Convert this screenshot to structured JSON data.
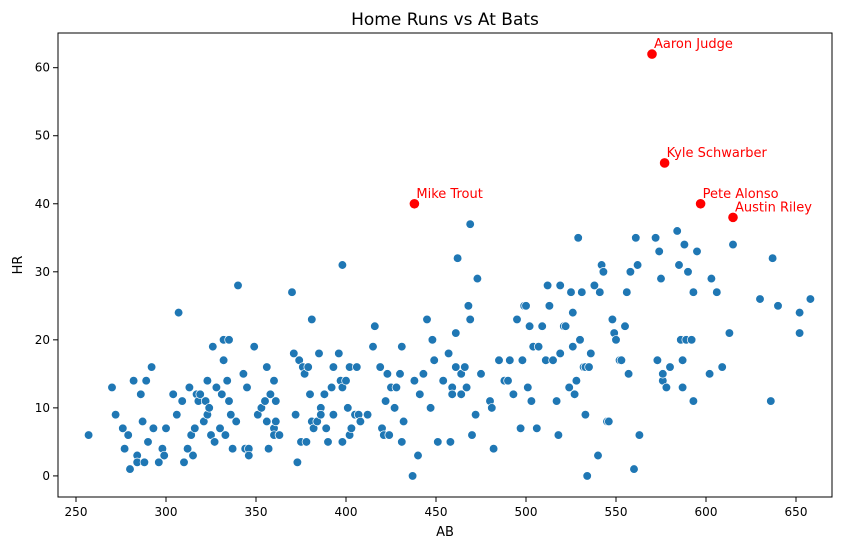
{
  "chart_data": {
    "type": "scatter",
    "title": "Home Runs vs At Bats",
    "xlabel": "AB",
    "ylabel": "HR",
    "xlim": [
      240,
      670
    ],
    "ylim": [
      -3.1,
      65.1
    ],
    "xticks": [
      250,
      300,
      350,
      400,
      450,
      500,
      550,
      600,
      650
    ],
    "yticks": [
      0,
      10,
      20,
      30,
      40,
      50,
      60
    ],
    "grid": false,
    "colors": {
      "points": "#1f77b4",
      "highlight": "#ff0000",
      "point_edge": "#ffffff"
    },
    "highlighted": [
      {
        "label": "Aaron Judge",
        "x": 570,
        "y": 62
      },
      {
        "label": "Kyle Schwarber",
        "x": 577,
        "y": 46
      },
      {
        "label": "Mike Trout",
        "x": 438,
        "y": 40
      },
      {
        "label": "Pete Alonso",
        "x": 597,
        "y": 40
      },
      {
        "label": "Austin Riley",
        "x": 615,
        "y": 38
      }
    ],
    "points": [
      [
        257,
        6
      ],
      [
        270,
        13
      ],
      [
        272,
        9
      ],
      [
        276,
        7
      ],
      [
        277,
        4
      ],
      [
        279,
        6
      ],
      [
        280,
        1
      ],
      [
        282,
        14
      ],
      [
        284,
        3
      ],
      [
        284,
        2
      ],
      [
        286,
        12
      ],
      [
        287,
        8
      ],
      [
        288,
        2
      ],
      [
        289,
        14
      ],
      [
        290,
        5
      ],
      [
        292,
        16
      ],
      [
        293,
        7
      ],
      [
        296,
        2
      ],
      [
        298,
        4
      ],
      [
        299,
        3
      ],
      [
        300,
        7
      ],
      [
        304,
        12
      ],
      [
        306,
        9
      ],
      [
        307,
        24
      ],
      [
        309,
        11
      ],
      [
        310,
        2
      ],
      [
        312,
        4
      ],
      [
        313,
        13
      ],
      [
        314,
        6
      ],
      [
        315,
        3
      ],
      [
        316,
        7
      ],
      [
        317,
        12
      ],
      [
        318,
        11
      ],
      [
        319,
        12
      ],
      [
        321,
        8
      ],
      [
        322,
        11
      ],
      [
        323,
        14
      ],
      [
        323,
        9
      ],
      [
        324,
        10
      ],
      [
        325,
        6
      ],
      [
        326,
        19
      ],
      [
        327,
        5
      ],
      [
        328,
        13
      ],
      [
        330,
        7
      ],
      [
        331,
        12
      ],
      [
        332,
        17
      ],
      [
        332,
        20
      ],
      [
        333,
        6
      ],
      [
        334,
        14
      ],
      [
        335,
        11
      ],
      [
        335,
        20
      ],
      [
        336,
        9
      ],
      [
        337,
        4
      ],
      [
        339,
        8
      ],
      [
        340,
        28
      ],
      [
        343,
        15
      ],
      [
        344,
        4
      ],
      [
        345,
        13
      ],
      [
        346,
        4
      ],
      [
        346,
        3
      ],
      [
        349,
        19
      ],
      [
        351,
        9
      ],
      [
        353,
        10
      ],
      [
        355,
        11
      ],
      [
        356,
        16
      ],
      [
        356,
        8
      ],
      [
        357,
        4
      ],
      [
        358,
        12
      ],
      [
        360,
        14
      ],
      [
        360,
        7
      ],
      [
        360,
        6
      ],
      [
        361,
        11
      ],
      [
        361,
        8
      ],
      [
        363,
        6
      ],
      [
        370,
        27
      ],
      [
        371,
        18
      ],
      [
        372,
        9
      ],
      [
        373,
        2
      ],
      [
        374,
        17
      ],
      [
        375,
        5
      ],
      [
        376,
        16
      ],
      [
        377,
        15
      ],
      [
        378,
        5
      ],
      [
        379,
        16
      ],
      [
        380,
        12
      ],
      [
        381,
        8
      ],
      [
        381,
        23
      ],
      [
        382,
        7
      ],
      [
        384,
        8
      ],
      [
        385,
        18
      ],
      [
        386,
        10
      ],
      [
        386,
        9
      ],
      [
        388,
        12
      ],
      [
        389,
        7
      ],
      [
        390,
        5
      ],
      [
        392,
        13
      ],
      [
        393,
        16
      ],
      [
        393,
        9
      ],
      [
        396,
        18
      ],
      [
        397,
        14
      ],
      [
        398,
        31
      ],
      [
        398,
        5
      ],
      [
        398,
        13
      ],
      [
        400,
        14
      ],
      [
        401,
        10
      ],
      [
        402,
        6
      ],
      [
        402,
        16
      ],
      [
        403,
        7
      ],
      [
        405,
        9
      ],
      [
        406,
        16
      ],
      [
        407,
        9
      ],
      [
        408,
        8
      ],
      [
        412,
        9
      ],
      [
        415,
        19
      ],
      [
        416,
        22
      ],
      [
        419,
        16
      ],
      [
        420,
        7
      ],
      [
        421,
        6
      ],
      [
        422,
        11
      ],
      [
        423,
        15
      ],
      [
        424,
        6
      ],
      [
        425,
        13
      ],
      [
        427,
        10
      ],
      [
        428,
        13
      ],
      [
        430,
        15
      ],
      [
        431,
        19
      ],
      [
        431,
        5
      ],
      [
        432,
        8
      ],
      [
        437,
        0
      ],
      [
        438,
        14
      ],
      [
        440,
        3
      ],
      [
        441,
        12
      ],
      [
        443,
        15
      ],
      [
        445,
        23
      ],
      [
        447,
        10
      ],
      [
        448,
        20
      ],
      [
        449,
        17
      ],
      [
        451,
        5
      ],
      [
        454,
        14
      ],
      [
        457,
        18
      ],
      [
        458,
        5
      ],
      [
        459,
        13
      ],
      [
        459,
        12
      ],
      [
        461,
        21
      ],
      [
        461,
        16
      ],
      [
        462,
        32
      ],
      [
        464,
        15
      ],
      [
        464,
        12
      ],
      [
        466,
        16
      ],
      [
        467,
        13
      ],
      [
        468,
        25
      ],
      [
        469,
        23
      ],
      [
        469,
        37
      ],
      [
        470,
        6
      ],
      [
        472,
        9
      ],
      [
        473,
        29
      ],
      [
        475,
        15
      ],
      [
        480,
        11
      ],
      [
        481,
        10
      ],
      [
        482,
        4
      ],
      [
        485,
        17
      ],
      [
        488,
        14
      ],
      [
        490,
        14
      ],
      [
        491,
        17
      ],
      [
        493,
        12
      ],
      [
        495,
        23
      ],
      [
        497,
        7
      ],
      [
        498,
        17
      ],
      [
        499,
        25
      ],
      [
        500,
        25
      ],
      [
        501,
        13
      ],
      [
        502,
        22
      ],
      [
        503,
        11
      ],
      [
        504,
        19
      ],
      [
        506,
        7
      ],
      [
        507,
        19
      ],
      [
        509,
        22
      ],
      [
        511,
        17
      ],
      [
        512,
        28
      ],
      [
        513,
        25
      ],
      [
        515,
        17
      ],
      [
        517,
        11
      ],
      [
        518,
        6
      ],
      [
        519,
        28
      ],
      [
        519,
        18
      ],
      [
        521,
        22
      ],
      [
        522,
        22
      ],
      [
        524,
        13
      ],
      [
        525,
        27
      ],
      [
        526,
        24
      ],
      [
        526,
        19
      ],
      [
        527,
        12
      ],
      [
        528,
        14
      ],
      [
        529,
        35
      ],
      [
        530,
        20
      ],
      [
        531,
        27
      ],
      [
        532,
        16
      ],
      [
        533,
        9
      ],
      [
        533,
        16
      ],
      [
        534,
        0
      ],
      [
        535,
        16
      ],
      [
        536,
        18
      ],
      [
        538,
        28
      ],
      [
        540,
        3
      ],
      [
        541,
        27
      ],
      [
        542,
        31
      ],
      [
        543,
        30
      ],
      [
        545,
        8
      ],
      [
        546,
        8
      ],
      [
        548,
        23
      ],
      [
        549,
        21
      ],
      [
        550,
        20
      ],
      [
        552,
        17
      ],
      [
        553,
        17
      ],
      [
        555,
        22
      ],
      [
        556,
        27
      ],
      [
        557,
        15
      ],
      [
        558,
        30
      ],
      [
        560,
        1
      ],
      [
        561,
        35
      ],
      [
        562,
        31
      ],
      [
        563,
        6
      ],
      [
        572,
        35
      ],
      [
        573,
        17
      ],
      [
        574,
        33
      ],
      [
        575,
        29
      ],
      [
        576,
        14
      ],
      [
        576,
        15
      ],
      [
        578,
        13
      ],
      [
        580,
        16
      ],
      [
        584,
        36
      ],
      [
        585,
        31
      ],
      [
        586,
        20
      ],
      [
        587,
        17
      ],
      [
        587,
        13
      ],
      [
        588,
        34
      ],
      [
        589,
        20
      ],
      [
        590,
        30
      ],
      [
        592,
        20
      ],
      [
        593,
        11
      ],
      [
        593,
        27
      ],
      [
        595,
        33
      ],
      [
        602,
        15
      ],
      [
        603,
        29
      ],
      [
        606,
        27
      ],
      [
        609,
        16
      ],
      [
        613,
        21
      ],
      [
        615,
        34
      ],
      [
        630,
        26
      ],
      [
        636,
        11
      ],
      [
        637,
        32
      ],
      [
        640,
        25
      ],
      [
        652,
        21
      ],
      [
        652,
        24
      ],
      [
        658,
        26
      ]
    ]
  }
}
